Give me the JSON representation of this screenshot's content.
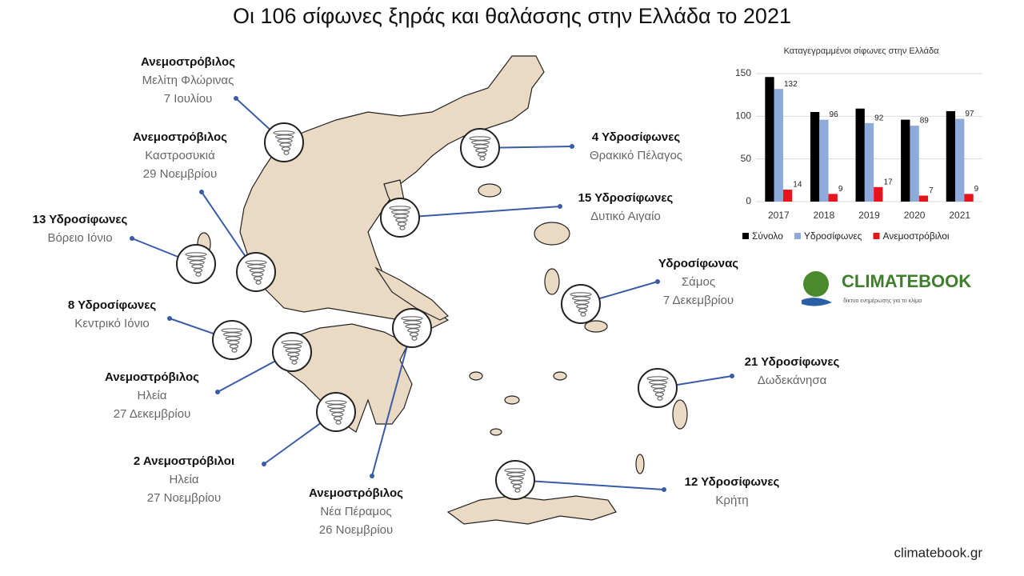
{
  "title": "Οι 106 σίφωνες ξηράς και θαλάσσης στην Ελλάδα το 2021",
  "annotations": [
    {
      "lines": [
        "Ανεμοστρόβιλος",
        "Μελίτη Φλώρινας",
        "7 Ιουλίου"
      ]
    },
    {
      "lines": [
        "Ανεμοστρόβιλος",
        "Καστροσυκιά",
        "29 Νοεμβρίου"
      ]
    },
    {
      "lines": [
        "13 Υδροσίφωνες",
        "Βόρειο Ιόνιο"
      ]
    },
    {
      "lines": [
        "8 Υδροσίφωνες",
        "Κεντρικό Ιόνιο"
      ]
    },
    {
      "lines": [
        "Ανεμοστρόβιλος",
        "Ηλεία",
        "27 Δεκεμβρίου"
      ]
    },
    {
      "lines": [
        "2 Ανεμοστρόβιλοι",
        "Ηλεία",
        "27 Νοεμβρίου"
      ]
    },
    {
      "lines": [
        "Ανεμοστρόβιλος",
        "Νέα Πέραμος",
        "26 Νοεμβρίου"
      ]
    },
    {
      "lines": [
        "4 Υδροσίφωνες",
        "Θρακικό Πέλαγος"
      ]
    },
    {
      "lines": [
        "15 Υδροσίφωνες",
        "Δυτικό Αιγαίο"
      ]
    },
    {
      "lines": [
        "Υδροσίφωνας",
        "Σάμος",
        "7 Δεκεμβρίου"
      ]
    },
    {
      "lines": [
        "21 Υδροσίφωνες",
        "Δωδεκάνησα"
      ]
    },
    {
      "lines": [
        "12 Υδροσίφωνες",
        "Κρήτη"
      ]
    }
  ],
  "chart_data": {
    "type": "bar",
    "title": "Καταγεγραμμένοι σίφωνες στην Ελλάδα",
    "categories": [
      "2017",
      "2018",
      "2019",
      "2020",
      "2021"
    ],
    "series": [
      {
        "name": "Σύνολο",
        "color": "#000000",
        "values": [
          146,
          105,
          109,
          96,
          106
        ]
      },
      {
        "name": "Υδροσίφωνες",
        "color": "#8eaadb",
        "values": [
          132,
          96,
          92,
          89,
          97
        ],
        "show_labels": true
      },
      {
        "name": "Ανεμοστρόβιλοι",
        "color": "#e8141c",
        "values": [
          14,
          9,
          17,
          7,
          9
        ],
        "show_labels": true
      }
    ],
    "ylim": [
      0,
      150
    ],
    "yticks": [
      0,
      50,
      100,
      150
    ],
    "grid": true,
    "legend": "bottom"
  },
  "logo": {
    "name": "CLIMATEBOOK",
    "tagline": "δίκτυο ενημέρωσης για το κλίμα"
  },
  "footer": "climatebook.gr"
}
